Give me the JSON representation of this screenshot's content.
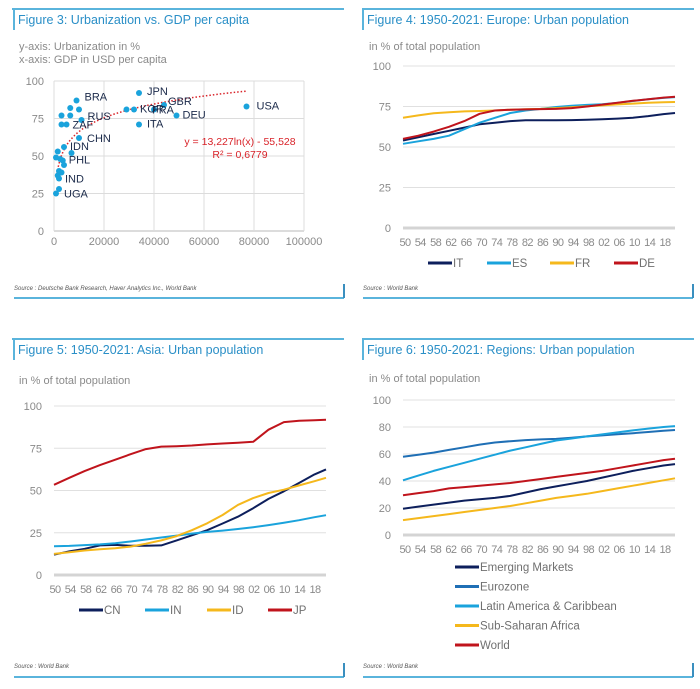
{
  "chart_data": [
    {
      "id": "fig3",
      "type": "scatter",
      "title": "Figure 3: Urbanization vs. GDP per capita",
      "subtitle_lines": [
        "y-axis: Urbanization in %",
        "x-axis: GDP in USD per capita"
      ],
      "xlabel": "GDP in USD per capita",
      "ylabel": "Urbanization in %",
      "xlim": [
        0,
        100000
      ],
      "ylim": [
        0,
        100
      ],
      "xticks": [
        0,
        20000,
        40000,
        60000,
        80000,
        100000
      ],
      "yticks": [
        0,
        25,
        50,
        75,
        100
      ],
      "grid": true,
      "point_color": "#1aa3dc",
      "points": [
        {
          "x": 9000,
          "y": 87,
          "label": "BRA"
        },
        {
          "x": 6500,
          "y": 82
        },
        {
          "x": 10000,
          "y": 81
        },
        {
          "x": 3000,
          "y": 77
        },
        {
          "x": 6500,
          "y": 77
        },
        {
          "x": 11000,
          "y": 74,
          "label": "RUS"
        },
        {
          "x": 3000,
          "y": 71
        },
        {
          "x": 5000,
          "y": 71,
          "label": "ZAF"
        },
        {
          "x": 10000,
          "y": 62,
          "label": "CHN"
        },
        {
          "x": 4000,
          "y": 56,
          "label": "IDN"
        },
        {
          "x": 1500,
          "y": 53
        },
        {
          "x": 7000,
          "y": 52
        },
        {
          "x": 800,
          "y": 49
        },
        {
          "x": 3500,
          "y": 47,
          "label": "PHL"
        },
        {
          "x": 2500,
          "y": 48
        },
        {
          "x": 4000,
          "y": 44
        },
        {
          "x": 2000,
          "y": 40
        },
        {
          "x": 3000,
          "y": 39
        },
        {
          "x": 1500,
          "y": 37
        },
        {
          "x": 2000,
          "y": 35,
          "label": "IND"
        },
        {
          "x": 2000,
          "y": 28
        },
        {
          "x": 800,
          "y": 25,
          "label": "UGA"
        },
        {
          "x": 34000,
          "y": 92,
          "label": "JPN"
        },
        {
          "x": 29000,
          "y": 81
        },
        {
          "x": 32000,
          "y": 81,
          "label": "KOR"
        },
        {
          "x": 40000,
          "y": 81,
          "label": "FRA"
        },
        {
          "x": 44000,
          "y": 84,
          "label": "GBR"
        },
        {
          "x": 49000,
          "y": 77,
          "label": "DEU"
        },
        {
          "x": 34000,
          "y": 71,
          "label": "ITA"
        },
        {
          "x": 77000,
          "y": 83,
          "label": "USA"
        }
      ],
      "trendline": {
        "type": "log",
        "a": 13.227,
        "b": -55.528,
        "x_range": [
          1000,
          77000
        ],
        "color": "#d9242a",
        "equation_text": "y = 13,227ln(x) - 55,528",
        "r2_text": "R² = 0,6779"
      },
      "source": "Source : Deutsche Bank Research, Haver Analytics Inc., World Bank"
    },
    {
      "id": "fig4",
      "type": "line",
      "title": "Figure 4: 1950-2021: Europe: Urban population",
      "subtitle_lines": [
        "in % of total population"
      ],
      "ylabel": "in % of total population",
      "ylim": [
        0,
        100
      ],
      "yticks": [
        0,
        25,
        50,
        75,
        100
      ],
      "x": [
        1950,
        1954,
        1958,
        1962,
        1966,
        1970,
        1974,
        1978,
        1982,
        1986,
        1990,
        1994,
        1998,
        2002,
        2006,
        2010,
        2014,
        2018,
        2021
      ],
      "xtick_labels": [
        "50",
        "54",
        "58",
        "62",
        "66",
        "70",
        "74",
        "78",
        "82",
        "86",
        "90",
        "94",
        "98",
        "02",
        "06",
        "10",
        "14",
        "18"
      ],
      "legend_position": "bottom",
      "series": [
        {
          "name": "IT",
          "color": "#0d1f5c",
          "values": [
            54,
            56,
            58,
            60,
            62,
            64,
            65,
            66,
            66.5,
            66.5,
            66.5,
            66.6,
            66.8,
            67.1,
            67.5,
            68.1,
            69.1,
            70.3,
            71.0
          ]
        },
        {
          "name": "ES",
          "color": "#1aa3dc",
          "values": [
            52,
            53.5,
            55,
            57,
            61,
            65,
            68,
            71,
            72.5,
            73.5,
            74.7,
            75.5,
            76,
            76.4,
            77.2,
            78.4,
            79.5,
            80.3,
            80.8
          ]
        },
        {
          "name": "FR",
          "color": "#f5b81c",
          "values": [
            68,
            69.5,
            70.8,
            71.5,
            72,
            72.2,
            72.5,
            73,
            73.3,
            73.5,
            74,
            74.5,
            75.2,
            75.7,
            76.3,
            76.8,
            77.3,
            77.6,
            77.8
          ]
        },
        {
          "name": "DE",
          "color": "#c0141c",
          "values": [
            55,
            57,
            59.5,
            62.5,
            66,
            70.5,
            72.5,
            73,
            73.2,
            73.4,
            73.5,
            74,
            75,
            76.2,
            77.3,
            78.5,
            79.5,
            80.5,
            81.0
          ]
        }
      ],
      "source": "Source : World Bank"
    },
    {
      "id": "fig5",
      "type": "line",
      "title": "Figure 5: 1950-2021: Asia: Urban population",
      "subtitle_lines": [
        "in % of total population"
      ],
      "ylabel": "in % of total population",
      "ylim": [
        0,
        100
      ],
      "yticks": [
        0,
        25,
        50,
        75,
        100
      ],
      "x": [
        1950,
        1954,
        1958,
        1962,
        1966,
        1970,
        1974,
        1978,
        1982,
        1986,
        1990,
        1994,
        1998,
        2002,
        2006,
        2010,
        2014,
        2018,
        2021
      ],
      "xtick_labels": [
        "50",
        "54",
        "58",
        "62",
        "66",
        "70",
        "74",
        "78",
        "82",
        "86",
        "90",
        "94",
        "98",
        "02",
        "06",
        "10",
        "14",
        "18"
      ],
      "legend_position": "bottom",
      "series": [
        {
          "name": "CN",
          "color": "#0d1f5c",
          "values": [
            12,
            14,
            15.5,
            17.5,
            17.8,
            17.3,
            17.3,
            17.5,
            20.5,
            23.5,
            26.5,
            30.5,
            34.5,
            39.5,
            45,
            49.5,
            54.5,
            59.5,
            62.5
          ]
        },
        {
          "name": "IN",
          "color": "#1aa3dc",
          "values": [
            17,
            17.2,
            17.7,
            18.1,
            18.8,
            19.8,
            21,
            22.2,
            23.3,
            24.5,
            25.5,
            26.3,
            27.2,
            28.3,
            29.5,
            30.9,
            32.4,
            34.2,
            35.4
          ]
        },
        {
          "name": "ID",
          "color": "#f5b81c",
          "values": [
            12.5,
            13.5,
            14.5,
            15.2,
            15.8,
            16.8,
            18.5,
            20.5,
            23,
            26.5,
            30.6,
            35.5,
            41.5,
            45.5,
            48.5,
            50.5,
            53,
            55.5,
            57.5
          ]
        },
        {
          "name": "JP",
          "color": "#c0141c",
          "values": [
            53.4,
            57.5,
            61.5,
            65,
            68.2,
            71.5,
            74.5,
            76,
            76.2,
            76.6,
            77.3,
            77.8,
            78.3,
            78.8,
            86,
            90.5,
            91.3,
            91.6,
            91.9
          ]
        }
      ],
      "source": "Source : World Bank"
    },
    {
      "id": "fig6",
      "type": "line",
      "title": "Figure 6: 1950-2021: Regions: Urban population",
      "subtitle_lines": [
        "in % of total population"
      ],
      "ylabel": "in % of total population",
      "ylim": [
        0,
        100
      ],
      "yticks": [
        0,
        20,
        40,
        60,
        80,
        100
      ],
      "x": [
        1950,
        1954,
        1958,
        1962,
        1966,
        1970,
        1974,
        1978,
        1982,
        1986,
        1990,
        1994,
        1998,
        2002,
        2006,
        2010,
        2014,
        2018,
        2021
      ],
      "xtick_labels": [
        "50",
        "54",
        "58",
        "62",
        "66",
        "70",
        "74",
        "78",
        "82",
        "86",
        "90",
        "94",
        "98",
        "02",
        "06",
        "10",
        "14",
        "18"
      ],
      "legend_position": "bottom",
      "series": [
        {
          "name": "Emerging Markets",
          "color": "#0d1f5c",
          "values": [
            19.5,
            21,
            22.5,
            24,
            25.5,
            26.5,
            27.5,
            29,
            31.5,
            34,
            36,
            38,
            40,
            42.5,
            45,
            47.5,
            49.5,
            51.5,
            52.5
          ]
        },
        {
          "name": "Eurozone",
          "color": "#1f6fb5",
          "values": [
            58,
            59.5,
            61,
            63,
            65,
            67,
            68.5,
            69.5,
            70.3,
            70.8,
            71.2,
            72,
            73,
            73.8,
            74.6,
            75.4,
            76.3,
            77.2,
            77.8
          ]
        },
        {
          "name": "Latin America & Caribbean",
          "color": "#1aa3dc",
          "values": [
            40.5,
            44,
            47.5,
            50.5,
            53.5,
            56.5,
            59.5,
            62.5,
            65,
            67.5,
            70,
            71.5,
            73,
            74.5,
            76,
            77.5,
            78.8,
            80,
            80.7
          ]
        },
        {
          "name": "Sub-Saharan Africa",
          "color": "#f5b81c",
          "values": [
            11,
            12.5,
            14,
            15.5,
            17,
            18.5,
            20,
            21.5,
            23.5,
            25.5,
            27.5,
            29,
            30.5,
            32.5,
            34.5,
            36.5,
            38.5,
            40.5,
            42
          ]
        },
        {
          "name": "World",
          "color": "#c0141c",
          "values": [
            29.5,
            31,
            32.5,
            34.5,
            35.5,
            36.5,
            37.5,
            38.5,
            40,
            41.5,
            43,
            44.5,
            46,
            47.5,
            49.5,
            51.5,
            53.5,
            55.5,
            56.5
          ]
        }
      ],
      "source": "Source : World Bank"
    }
  ]
}
